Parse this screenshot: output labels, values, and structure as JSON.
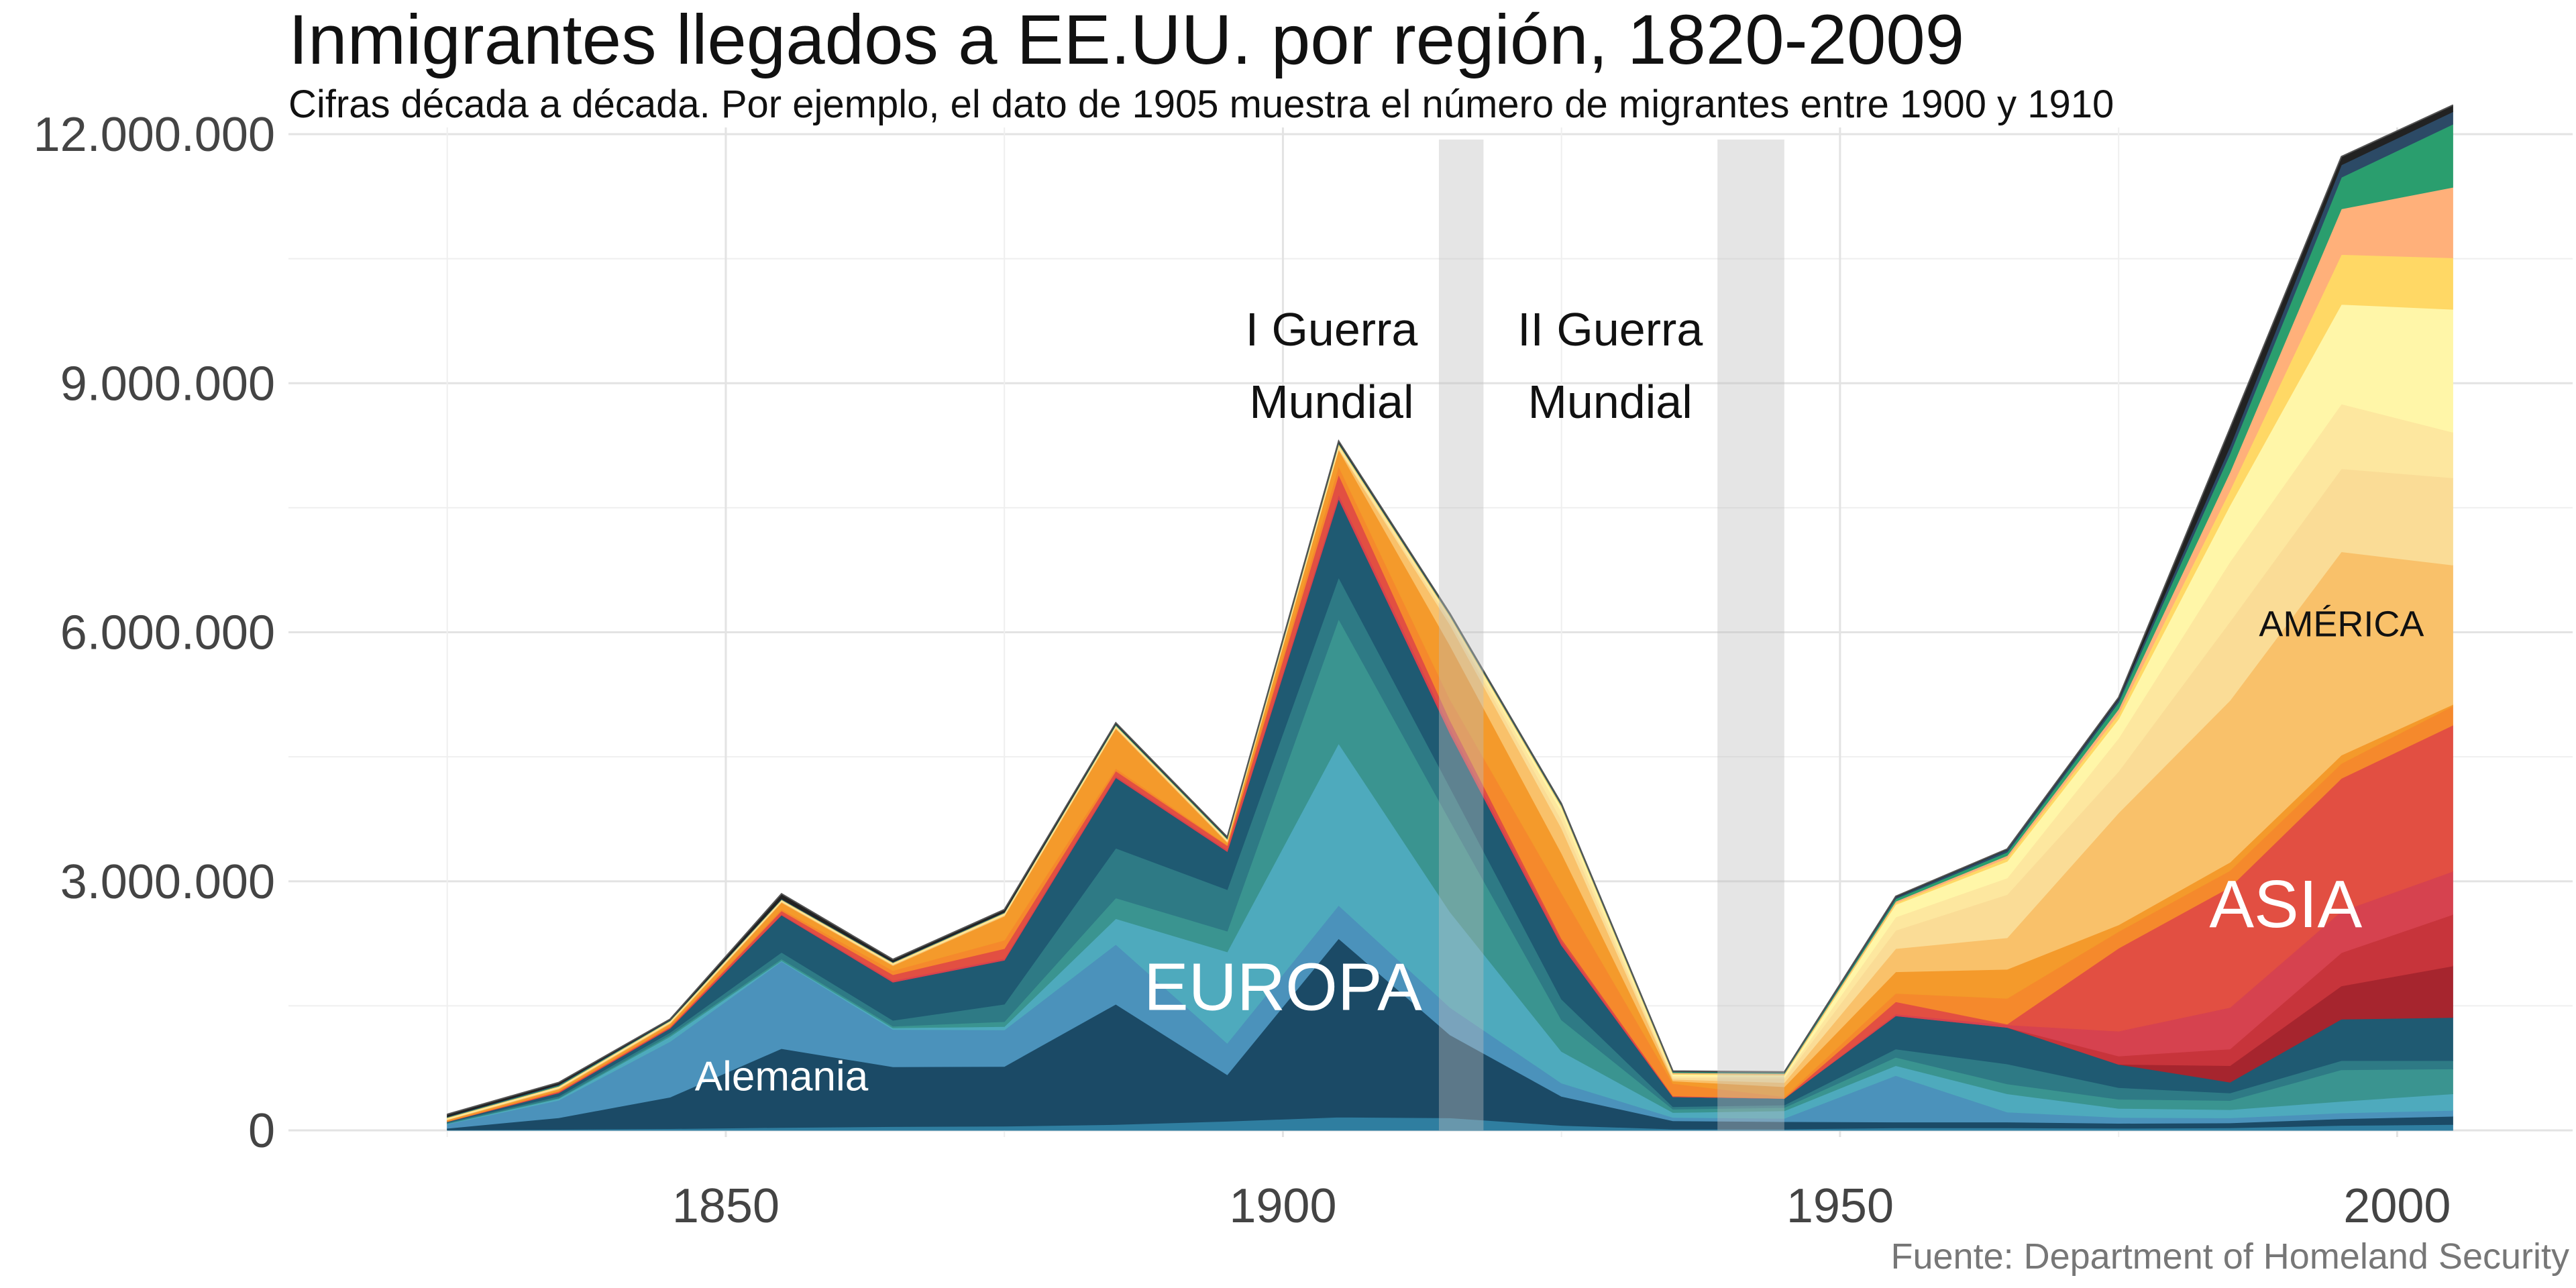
{
  "header": {
    "title": "Inmigrantes llegados a EE.UU. por región, 1820-2009",
    "subtitle": "Cifras década a década. Por ejemplo, el dato de 1905 muestra el número de migrantes entre 1900 y 1910",
    "caption": "Fuente: Department of Homeland Security"
  },
  "chart_data": {
    "type": "area",
    "stacked": true,
    "x": [
      1825,
      1835,
      1845,
      1855,
      1865,
      1875,
      1885,
      1895,
      1905,
      1915,
      1925,
      1935,
      1945,
      1955,
      1965,
      1975,
      1985,
      1995,
      2005
    ],
    "xticks": [
      1850,
      1900,
      1950,
      2000
    ],
    "ylim": [
      0,
      12000000
    ],
    "yticks": [
      0,
      3000000,
      6000000,
      9000000,
      12000000
    ],
    "ytick_labels": [
      "0",
      "3.000.000",
      "6.000.000",
      "9.000.000",
      "12.000.000"
    ],
    "grid": true,
    "legend": "none",
    "shaded_periods": [
      {
        "from": 1914,
        "to": 1918,
        "label_lines": [
          "I Guerra",
          "Mundial"
        ]
      },
      {
        "from": 1939,
        "to": 1945,
        "label_lines": [
          "II Guerra",
          "Mundial"
        ]
      }
    ],
    "annotations": [
      {
        "text": "Alemania",
        "x": 1855,
        "y": 480000,
        "color": "#ffffff",
        "size": 62
      },
      {
        "text": "EUROPA",
        "x": 1900,
        "y": 1450000,
        "color": "#ffffff",
        "size": 100
      },
      {
        "text": "ASIA",
        "x": 1990,
        "y": 2450000,
        "color": "#ffffff",
        "size": 100
      },
      {
        "text": "AMÉRICA",
        "x": 1995,
        "y": 5950000,
        "color": "#111111",
        "size": 54
      }
    ],
    "series": [
      {
        "color": "#2f7ea0",
        "values": [
          5000,
          12000,
          20000,
          35000,
          45000,
          50000,
          70000,
          110000,
          160000,
          150000,
          60000,
          15000,
          15000,
          30000,
          30000,
          25000,
          30000,
          60000,
          70000
        ]
      },
      {
        "color": "#1b4a66",
        "values": [
          20000,
          140000,
          380000,
          950000,
          720000,
          720000,
          1450000,
          560000,
          2150000,
          1000000,
          350000,
          100000,
          90000,
          70000,
          70000,
          60000,
          60000,
          80000,
          100000
        ]
      },
      {
        "color": "#4b92bb",
        "values": [
          50000,
          210000,
          670000,
          1050000,
          450000,
          440000,
          720000,
          380000,
          400000,
          330000,
          160000,
          40000,
          40000,
          560000,
          120000,
          70000,
          60000,
          70000,
          70000
        ]
      },
      {
        "color": "#4eaabd",
        "values": [
          5000,
          20000,
          60000,
          10000,
          20000,
          40000,
          310000,
          1100000,
          1950000,
          1150000,
          380000,
          60000,
          90000,
          120000,
          220000,
          110000,
          100000,
          140000,
          200000
        ]
      },
      {
        "color": "#3a9490",
        "values": [
          5000,
          10000,
          20000,
          20000,
          20000,
          60000,
          250000,
          250000,
          1500000,
          1100000,
          380000,
          40000,
          40000,
          100000,
          120000,
          110000,
          110000,
          380000,
          300000
        ]
      },
      {
        "color": "#2e7a85",
        "values": [
          10000,
          20000,
          30000,
          80000,
          70000,
          210000,
          600000,
          500000,
          500000,
          400000,
          250000,
          30000,
          30000,
          100000,
          240000,
          140000,
          90000,
          110000,
          100000
        ]
      },
      {
        "color": "#1f5a72",
        "values": [
          10000,
          40000,
          50000,
          450000,
          460000,
          530000,
          850000,
          460000,
          950000,
          650000,
          650000,
          120000,
          80000,
          400000,
          440000,
          280000,
          130000,
          500000,
          520000
        ]
      },
      {
        "color": "#a6252e",
        "values": [
          0,
          0,
          0,
          0,
          0,
          0,
          0,
          0,
          0,
          0,
          0,
          0,
          0,
          0,
          0,
          0,
          200000,
          400000,
          620000
        ]
      },
      {
        "color": "#c7343b",
        "values": [
          0,
          0,
          0,
          0,
          0,
          0,
          0,
          0,
          0,
          0,
          0,
          0,
          0,
          0,
          0,
          100000,
          200000,
          400000,
          620000
        ]
      },
      {
        "color": "#d6424f",
        "values": [
          0,
          5000,
          10000,
          10000,
          20000,
          20000,
          20000,
          20000,
          50000,
          60000,
          40000,
          0,
          0,
          20000,
          30000,
          300000,
          500000,
          500000,
          520000
        ]
      },
      {
        "color": "#e24f42",
        "values": [
          0,
          10000,
          5000,
          40000,
          70000,
          120000,
          60000,
          50000,
          240000,
          100000,
          40000,
          10000,
          0,
          150000,
          10000,
          1000000,
          1450000,
          1600000,
          1760000
        ]
      },
      {
        "color": "#f5892c",
        "values": [
          10000,
          10000,
          20000,
          20000,
          50000,
          100000,
          30000,
          10000,
          100000,
          250000,
          550000,
          150000,
          20000,
          100000,
          310000,
          200000,
          200000,
          180000,
          230000
        ]
      },
      {
        "color": "#f49a2b",
        "values": [
          10000,
          20000,
          20000,
          80000,
          60000,
          290000,
          480000,
          30000,
          200000,
          650000,
          480000,
          30000,
          120000,
          260000,
          350000,
          80000,
          100000,
          100000,
          20000
        ]
      },
      {
        "color": "#f9c16a",
        "values": [
          5000,
          10000,
          10000,
          10000,
          10000,
          10000,
          10000,
          10000,
          10000,
          250000,
          300000,
          20000,
          50000,
          280000,
          380000,
          1350000,
          1950000,
          2450000,
          1680000
        ]
      },
      {
        "color": "#fadc96",
        "values": [
          5000,
          5000,
          5000,
          5000,
          5000,
          10000,
          10000,
          10000,
          10000,
          50000,
          100000,
          20000,
          50000,
          220000,
          520000,
          500000,
          950000,
          1000000,
          1050000
        ]
      },
      {
        "color": "#fde79f",
        "values": [
          5000,
          5000,
          5000,
          5000,
          5000,
          5000,
          5000,
          5000,
          20000,
          30000,
          100000,
          20000,
          20000,
          160000,
          200000,
          400000,
          720000,
          780000,
          550000
        ]
      },
      {
        "color": "#fff6a8",
        "values": [
          5000,
          5000,
          5000,
          5000,
          5000,
          5000,
          5000,
          5000,
          10000,
          10000,
          50000,
          20000,
          20000,
          150000,
          200000,
          230000,
          680000,
          1200000,
          1480000
        ]
      },
      {
        "color": "#ffd865",
        "values": [
          5000,
          5000,
          5000,
          5000,
          5000,
          5000,
          5000,
          5000,
          10000,
          10000,
          10000,
          10000,
          10000,
          20000,
          40000,
          60000,
          180000,
          600000,
          620000
        ]
      },
      {
        "color": "#ffb07a",
        "values": [
          5000,
          5000,
          5000,
          5000,
          5000,
          5000,
          5000,
          5000,
          10000,
          10000,
          10000,
          10000,
          10000,
          20000,
          30000,
          60000,
          220000,
          550000,
          850000
        ]
      },
      {
        "color": "#2a9e6e",
        "values": [
          5000,
          10000,
          5000,
          5000,
          5000,
          5000,
          10000,
          10000,
          10000,
          10000,
          10000,
          10000,
          10000,
          30000,
          40000,
          80000,
          220000,
          380000,
          760000
        ]
      },
      {
        "color": "#2c4a66",
        "values": [
          5000,
          10000,
          5000,
          5000,
          5000,
          5000,
          5000,
          5000,
          5000,
          5000,
          5000,
          5000,
          5000,
          20000,
          30000,
          40000,
          90000,
          150000,
          150000
        ]
      },
      {
        "color": "#222222",
        "values": [
          30000,
          25000,
          10000,
          60000,
          30000,
          30000,
          15000,
          10000,
          20000,
          10000,
          10000,
          5000,
          5000,
          10000,
          10000,
          20000,
          220000,
          100000,
          80000
        ]
      }
    ]
  }
}
